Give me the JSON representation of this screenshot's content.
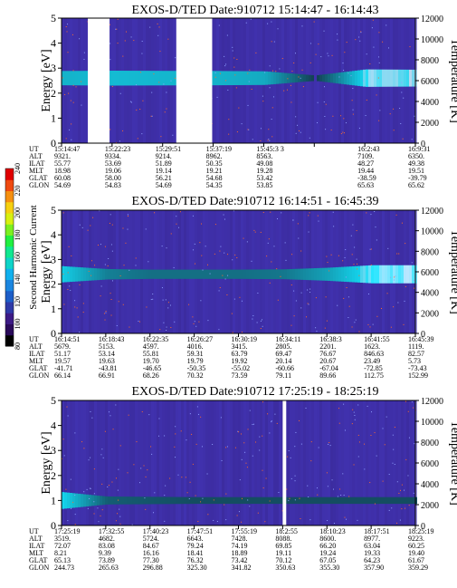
{
  "colorbar": {
    "label": "Second Harmonic Current",
    "ticks": [
      "80",
      "100",
      "120",
      "140",
      "160",
      "180",
      "200",
      "220",
      "240"
    ],
    "colors": [
      "#000000",
      "#2a0a5a",
      "#3c1a86",
      "#2e3aa8",
      "#1d5ec8",
      "#1b86e0",
      "#10b0ee",
      "#0ed4c8",
      "#10e890",
      "#20f040",
      "#7cf020",
      "#d8f010",
      "#f6d010",
      "#f69010",
      "#f04a10",
      "#e00000"
    ]
  },
  "chart_data": [
    {
      "type": "heatmap",
      "title": "EXOS-D/TED   Date:910712   15:14:47 - 16:14:43",
      "ylabel": "Energy [eV]",
      "ylabel_right": "Temperature [K]",
      "ylim": [
        0,
        5
      ],
      "yticks": [
        "0",
        "1",
        "2",
        "3",
        "4",
        "5"
      ],
      "ylim_right": [
        0,
        12000
      ],
      "yticks_right": [
        "0",
        "2000",
        "4000",
        "6000",
        "8000",
        "10000",
        "12000"
      ],
      "row_labels": [
        "UT",
        "ALT",
        "ILAT",
        "MLT",
        "GLAT",
        "GLON"
      ],
      "columns": [
        [
          "15:14:47",
          "9321.",
          "55.77",
          "18.98",
          "60.08",
          "54.69"
        ],
        [
          "15:22:23",
          "9334.",
          "53.69",
          "19.06",
          "58.00",
          "54.83"
        ],
        [
          "15:29:51",
          "9214.",
          "51.89",
          "19.14",
          "56.21",
          "54.69"
        ],
        [
          "15:37:19",
          "8962.",
          "50.35",
          "19.21",
          "54.68",
          "54.35"
        ],
        [
          "15:45:3 3",
          "8563.",
          "49.08",
          "19.28",
          "53.42",
          "53.85"
        ],
        [
          "",
          "",
          " ",
          " ",
          " ",
          " "
        ],
        [
          "16:2:43",
          "7109.",
          "48.27",
          "19.44",
          "-38.59",
          "65.63"
        ],
        [
          "16:9:31",
          "6350.",
          "49.38",
          "19.51",
          "-39.79",
          "65.62"
        ]
      ],
      "gaps": [
        [
          0.52,
          0.95
        ],
        [
          2.27,
          2.98
        ]
      ],
      "band_eV": 2.6,
      "band_levels": [
        0.7,
        0.75,
        0.72,
        0.7,
        0.65,
        0.0,
        0.95,
        0.9
      ]
    },
    {
      "type": "heatmap",
      "title": "EXOS-D/TED   Date:910712   16:14:51 - 16:45:39",
      "ylabel": "Energy [eV]",
      "ylabel_right": "Temperature [K]",
      "ylim": [
        0,
        5
      ],
      "yticks": [
        "0",
        "1",
        "2",
        "3",
        "4",
        "5"
      ],
      "ylim_right": [
        0,
        12000
      ],
      "yticks_right": [
        "0",
        "2000",
        "4000",
        "6000",
        "8000",
        "10000",
        "12000"
      ],
      "row_labels": [
        "UT",
        "ALT",
        "ILAT",
        "MLT",
        "GLAT",
        "GLON"
      ],
      "columns": [
        [
          "16:14:51",
          "5679.",
          "51.17",
          "19.57",
          "-41.71",
          "66.14"
        ],
        [
          "16:18:43",
          "5153.",
          "53.14",
          "19.63",
          "-43.81",
          "66.91"
        ],
        [
          "16:22:35",
          "4597.",
          "55.81",
          "19.70",
          "-46.65",
          "68.26"
        ],
        [
          "16:26:27",
          "4016.",
          "59.31",
          "19.79",
          "-50.35",
          "70.32"
        ],
        [
          "16:30:19",
          "3415.",
          "63.79",
          "19.92",
          "-55.02",
          "73.59"
        ],
        [
          "16:34:11",
          "2805.",
          "69.47",
          "20.14",
          "-60.66",
          "79.11"
        ],
        [
          "16:38:3",
          "2201.",
          "76.67",
          "20.67",
          "-67.04",
          "89.66"
        ],
        [
          "16:41:55",
          "1623.",
          "846.63",
          "23.49",
          "-72.85",
          "112.75"
        ],
        [
          "16:45:39",
          "1119.",
          "82.57",
          "5.73",
          "-73.43",
          "152.99"
        ]
      ],
      "gaps": [],
      "band_eV": 2.4,
      "band_levels": [
        0.85,
        0.4,
        0.3,
        0.3,
        0.3,
        0.35,
        0.6,
        1.0,
        1.0
      ]
    },
    {
      "type": "heatmap",
      "title": "EXOS-D/TED   Date:910712   17:25:19 - 18:25:19",
      "ylabel": "Energy [eV]",
      "ylabel_right": "Temperature [K]",
      "ylim": [
        0,
        5
      ],
      "yticks": [
        "0",
        "1",
        "2",
        "3",
        "4",
        "5"
      ],
      "ylim_right": [
        0,
        12000
      ],
      "yticks_right": [
        "0",
        "2000",
        "4000",
        "6000",
        "8000",
        "10000",
        "12000"
      ],
      "row_labels": [
        "UT",
        "ALT",
        "ILAT",
        "MLT",
        "GLAT",
        "GLON"
      ],
      "columns": [
        [
          "17:25:19",
          "3519.",
          "72.07",
          "8.21",
          "65.13",
          "244.73"
        ],
        [
          "17:32:55",
          "4682.",
          "83.08",
          "9.39",
          "73.89",
          "265.63"
        ],
        [
          "17:40:23",
          "5724.",
          "84.67",
          "16.16",
          "77.30",
          "296.88"
        ],
        [
          "17:47:51",
          "6643.",
          "79.24",
          "18.41",
          "76.32",
          "325.30"
        ],
        [
          "17:55:19",
          "7428.",
          "74.19",
          "18.89",
          "73.42",
          "341.82"
        ],
        [
          "18:2:55",
          "8088.",
          "69.85",
          "19.11",
          "70.12",
          "350.63"
        ],
        [
          "18:10:23",
          "8600.",
          "66.20",
          "19.24",
          "67.05",
          "355.30"
        ],
        [
          "18:17:51",
          "8977.",
          "63.04",
          "19.33",
          "64.23",
          "357.90"
        ],
        [
          "18:25:19",
          "9223.",
          "60.25",
          "19.40",
          "61.67",
          "359.29"
        ]
      ],
      "gaps": [
        [
          5.0,
          5.08
        ]
      ],
      "band_eV": 1.0,
      "band_levels": [
        0.9,
        0.2,
        0.15,
        0.1,
        0.1,
        0.1,
        0.1,
        0.1,
        0.1
      ]
    }
  ]
}
